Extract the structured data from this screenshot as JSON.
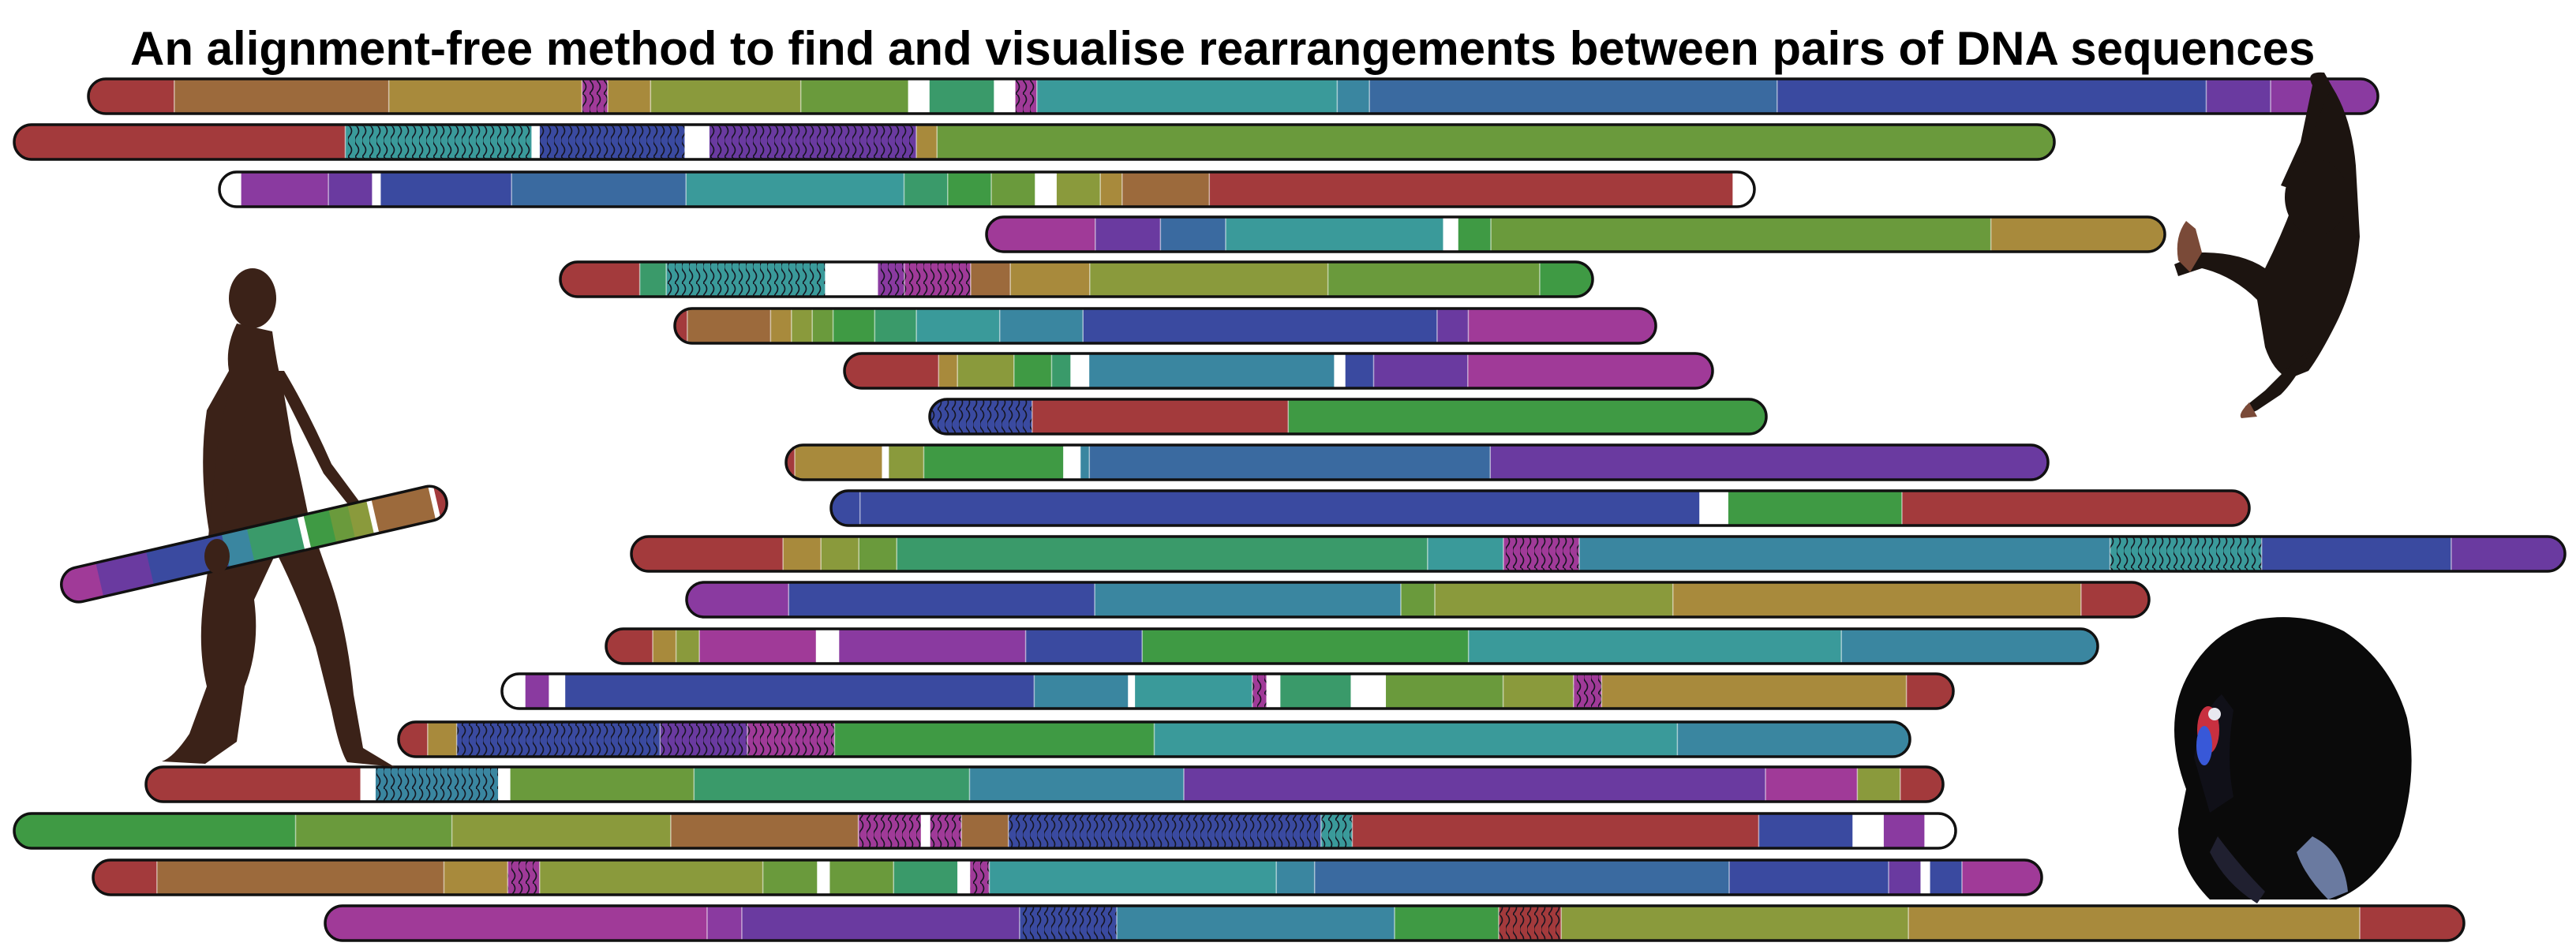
{
  "title": "An alignment-free method to find and visualise rearrangements between pairs of DNA sequences",
  "palette": {
    "red": "#a33a3c",
    "brown": "#9c6a3c",
    "ochre": "#a88a3c",
    "olive": "#8a9a3c",
    "lime": "#6a9a3c",
    "green": "#3f9a44",
    "seagreen": "#3a9a6a",
    "teal": "#3a9a9a",
    "cyan": "#3a86a0",
    "blue": "#3a6aa0",
    "indigo": "#3a4aa0",
    "violet": "#6a3aa0",
    "purple": "#8a3aa0",
    "magenta": "#a03a98",
    "white": "#ffffff"
  },
  "figures": [
    {
      "name": "walking-human-figure",
      "description": "hominin carrying a chromosome"
    },
    {
      "name": "hanging-chimpanzee-figure",
      "description": "chimpanzee hanging from top chromosome"
    },
    {
      "name": "turkey-figure",
      "description": "turkey with fanned tail"
    }
  ]
}
